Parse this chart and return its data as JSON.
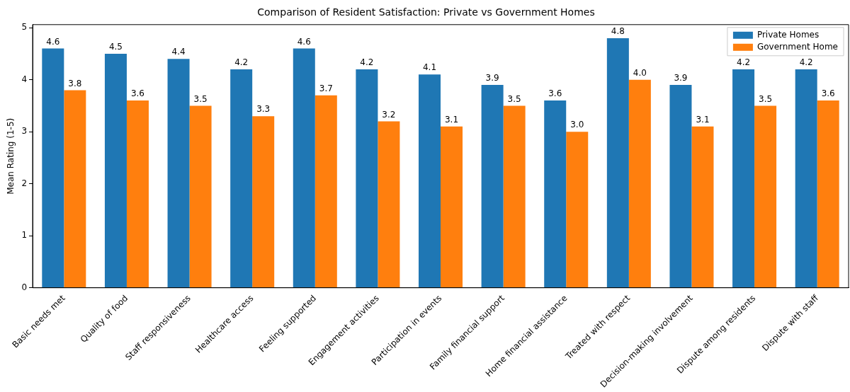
{
  "chart_data": {
    "type": "bar",
    "title": "Comparison of Resident Satisfaction: Private vs Government Homes",
    "ylabel": "Mean Rating (1-5)",
    "categories": [
      "Basic needs met",
      "Quality of food",
      "Staff responsiveness",
      "Healthcare access",
      "Feeling supported",
      "Engagement activities",
      "Participation in events",
      "Family financial support",
      "Home financial assistance",
      "Treated with respect",
      "Decision-making involvement",
      "Dispute among residents",
      "Dispute with staff"
    ],
    "series": [
      {
        "name": "Private Homes",
        "color": "#1f77b4",
        "values": [
          4.6,
          4.5,
          4.4,
          4.2,
          4.6,
          4.2,
          4.1,
          3.9,
          3.6,
          4.8,
          3.9,
          4.2,
          4.2
        ],
        "value_labels": [
          "4.6",
          "4.5",
          "4.4",
          "4.2",
          "4.6",
          "4.2",
          "4.1",
          "3.9",
          "3.6",
          "4.8",
          "3.9",
          "4.2",
          "4.2"
        ]
      },
      {
        "name": "Government Home",
        "color": "#ff7f0e",
        "values": [
          3.8,
          3.6,
          3.5,
          3.3,
          3.7,
          3.2,
          3.1,
          3.5,
          3.0,
          4.0,
          3.1,
          3.5,
          3.6
        ],
        "value_labels": [
          "3.8",
          "3.6",
          "3.5",
          "3.3",
          "3.7",
          "3.2",
          "3.1",
          "3.5",
          "3.0",
          "4.0",
          "3.1",
          "3.5",
          "3.6"
        ]
      }
    ],
    "ylim": [
      0,
      5.06
    ],
    "yticks": [
      0,
      1,
      2,
      3,
      4,
      5
    ],
    "grid": false,
    "legend": "top right"
  }
}
